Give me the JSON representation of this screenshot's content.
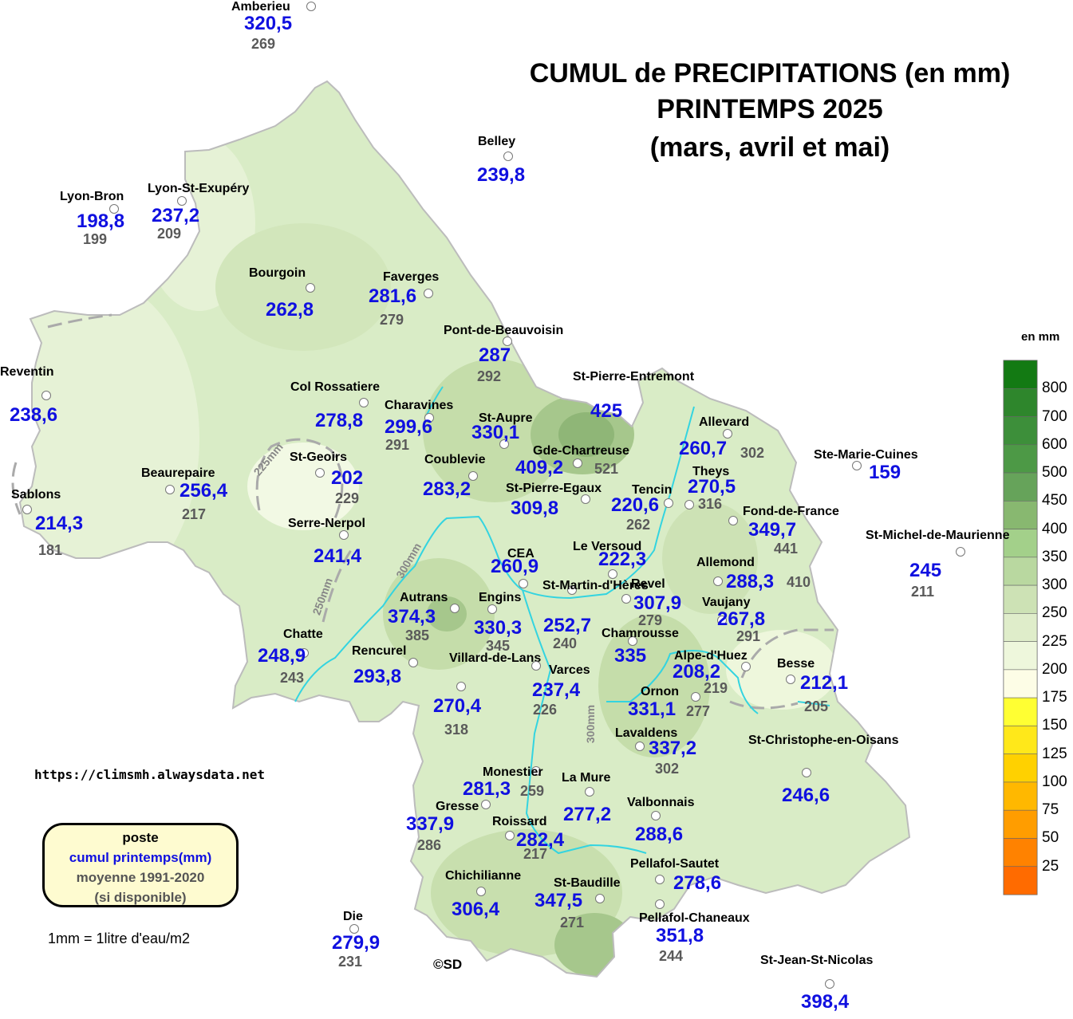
{
  "title": {
    "line1": "CUMUL de PRECIPITATIONS (en mm)",
    "line2": "PRINTEMPS 2025",
    "line3": "(mars, avril et mai)"
  },
  "website": "https://climsmh.alwaysdata.net",
  "legend_box": {
    "poste": "poste",
    "cumul": "cumul printemps(mm)",
    "moyenne": "moyenne 1991-2020",
    "note": "(si disponible)"
  },
  "unit_note": "1mm = 1litre d'eau/m2",
  "copyright": "©SD",
  "scale": {
    "unit": "en mm",
    "labels": [
      "800",
      "700",
      "600",
      "500",
      "450",
      "400",
      "350",
      "300",
      "250",
      "225",
      "200",
      "175",
      "150",
      "125",
      "100",
      "75",
      "50",
      "25"
    ],
    "colors": [
      "#137a13",
      "#2e862c",
      "#3d8f3a",
      "#4d9946",
      "#66a35a",
      "#88b870",
      "#a3d08a",
      "#b9d8a0",
      "#cde2b5",
      "#dfedca",
      "#eef7dc",
      "#fdfde6",
      "#ffff33",
      "#ffe81a",
      "#ffd100",
      "#ffb800",
      "#ff9d00",
      "#ff8200",
      "#ff6b00"
    ]
  },
  "isohyet_labels": [
    "225mm",
    "250mm",
    "300mm",
    "300mm"
  ],
  "stations": [
    {
      "name": "Amberieu",
      "value": "320,5",
      "avg": "269"
    },
    {
      "name": "Belley",
      "value": "239,8",
      "avg": ""
    },
    {
      "name": "Lyon-Bron",
      "value": "198,8",
      "avg": "199"
    },
    {
      "name": "Lyon-St-Exupéry",
      "value": "237,2",
      "avg": "209"
    },
    {
      "name": "Bourgoin",
      "value": "262,8",
      "avg": ""
    },
    {
      "name": "Faverges",
      "value": "281,6",
      "avg": "279"
    },
    {
      "name": "Pont-de-Beauvoisin",
      "value": "287",
      "avg": "292"
    },
    {
      "name": "St-Pierre-Entremont",
      "value": "425",
      "avg": ""
    },
    {
      "name": "Reventin",
      "value": "238,6",
      "avg": ""
    },
    {
      "name": "Col Rossatiere",
      "value": "278,8",
      "avg": ""
    },
    {
      "name": "Charavines",
      "value": "299,6",
      "avg": "291"
    },
    {
      "name": "St-Aupre",
      "value": "330,1",
      "avg": ""
    },
    {
      "name": "Allevard",
      "value": "260,7",
      "avg": "302"
    },
    {
      "name": "Ste-Marie-Cuines",
      "value": "159",
      "avg": ""
    },
    {
      "name": "Gde-Chartreuse",
      "value": "409,2",
      "avg": "521"
    },
    {
      "name": "Beaurepaire",
      "value": "256,4",
      "avg": "217"
    },
    {
      "name": "St-Geoirs",
      "value": "202",
      "avg": "229"
    },
    {
      "name": "Coublevie",
      "value": "283,2",
      "avg": ""
    },
    {
      "name": "St-Pierre-Egaux",
      "value": "309,8",
      "avg": ""
    },
    {
      "name": "Tencin",
      "value": "220,6",
      "avg": "262"
    },
    {
      "name": "Theys",
      "value": "270,5",
      "avg": "316"
    },
    {
      "name": "Sablons",
      "value": "214,3",
      "avg": "181"
    },
    {
      "name": "Serre-Nerpol",
      "value": "241,4",
      "avg": ""
    },
    {
      "name": "Fond-de-France",
      "value": "349,7",
      "avg": "441"
    },
    {
      "name": "St-Michel-de-Maurienne",
      "value": "245",
      "avg": "211"
    },
    {
      "name": "Le Versoud",
      "value": "222,3",
      "avg": ""
    },
    {
      "name": "CEA",
      "value": "260,9",
      "avg": ""
    },
    {
      "name": "Allemond",
      "value": "288,3",
      "avg": "410"
    },
    {
      "name": "St-Martin-d'Hères",
      "value": "252,7",
      "avg": "240"
    },
    {
      "name": "Revel",
      "value": "307,9",
      "avg": "279"
    },
    {
      "name": "Autrans",
      "value": "374,3",
      "avg": "385"
    },
    {
      "name": "Engins",
      "value": "330,3",
      "avg": "345"
    },
    {
      "name": "Vaujany",
      "value": "267,8",
      "avg": "291"
    },
    {
      "name": "Chatte",
      "value": "248,9",
      "avg": "243"
    },
    {
      "name": "Chamrousse",
      "value": "335",
      "avg": ""
    },
    {
      "name": "Rencurel",
      "value": "293,8",
      "avg": ""
    },
    {
      "name": "Villard-de-Lans",
      "value": "270,4",
      "avg": "318"
    },
    {
      "name": "Varces",
      "value": "237,4",
      "avg": "226"
    },
    {
      "name": "Alpe-d'Huez",
      "value": "208,2",
      "avg": "219"
    },
    {
      "name": "Besse",
      "value": "212,1",
      "avg": "205"
    },
    {
      "name": "Ornon",
      "value": "331,1",
      "avg": "277"
    },
    {
      "name": "Lavaldens",
      "value": "337,2",
      "avg": "302"
    },
    {
      "name": "St-Christophe-en-Oisans",
      "value": "246,6",
      "avg": ""
    },
    {
      "name": "Monestier",
      "value": "281,3",
      "avg": "259"
    },
    {
      "name": "La Mure",
      "value": "277,2",
      "avg": ""
    },
    {
      "name": "Gresse",
      "value": "337,9",
      "avg": "286"
    },
    {
      "name": "Valbonnais",
      "value": "288,6",
      "avg": ""
    },
    {
      "name": "Roissard",
      "value": "282,4",
      "avg": "217"
    },
    {
      "name": "Pellafol-Sautet",
      "value": "278,6",
      "avg": ""
    },
    {
      "name": "Chichilianne",
      "value": "306,4",
      "avg": ""
    },
    {
      "name": "St-Baudille",
      "value": "347,5",
      "avg": "271"
    },
    {
      "name": "Pellafol-Chaneaux",
      "value": "351,8",
      "avg": "244"
    },
    {
      "name": "Die",
      "value": "279,9",
      "avg": "231"
    },
    {
      "name": "St-Jean-St-Nicolas",
      "value": "398,4",
      "avg": ""
    }
  ]
}
